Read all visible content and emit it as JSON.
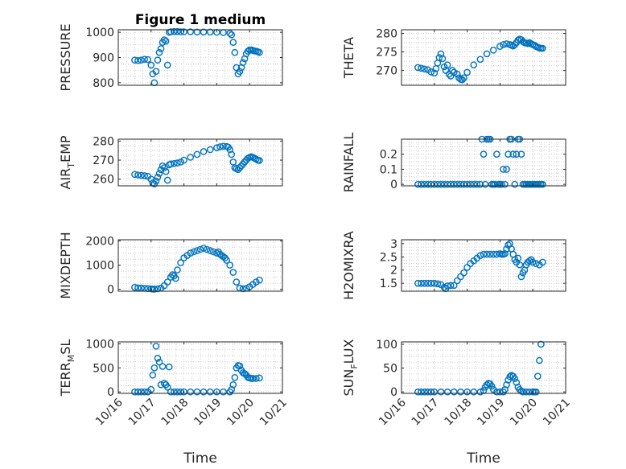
{
  "chart_data": {
    "type": "scatter",
    "title": "Figure 1 medium",
    "xlabel": "Time",
    "marker_color": "#0072BD",
    "x_tick_labels": [
      "10/16",
      "10/17",
      "10/18",
      "10/19",
      "10/20",
      "10/21"
    ],
    "x_tick_values": [
      16,
      17,
      18,
      19,
      20,
      21
    ],
    "xlim": [
      16,
      21
    ],
    "panels": [
      {
        "id": "pressure",
        "ylabel": "PRESSURE",
        "ylim": [
          790,
          1010
        ],
        "yticks": [
          800,
          900,
          1000
        ],
        "ytick_labels": [
          "800",
          "900",
          "1000"
        ],
        "x": [
          16.5,
          16.6,
          16.7,
          16.8,
          16.9,
          17.0,
          17.05,
          17.1,
          17.15,
          17.2,
          17.25,
          17.3,
          17.35,
          17.4,
          17.45,
          17.5,
          17.55,
          17.6,
          17.7,
          17.8,
          17.9,
          18.0,
          18.2,
          18.4,
          18.6,
          18.8,
          19.0,
          19.2,
          19.4,
          19.45,
          19.5,
          19.55,
          19.6,
          19.65,
          19.7,
          19.75,
          19.8,
          19.85,
          19.9,
          19.95,
          20.0,
          20.05,
          20.1,
          20.15,
          20.2,
          20.25,
          20.3
        ],
        "y": [
          890,
          888,
          890,
          893,
          892,
          870,
          835,
          800,
          845,
          890,
          920,
          935,
          960,
          970,
          965,
          870,
          1000,
          1002,
          1003,
          1003,
          1002,
          1002,
          1002,
          1001,
          1001,
          1001,
          1000,
          999,
          996,
          990,
          960,
          920,
          860,
          835,
          845,
          860,
          880,
          895,
          915,
          925,
          930,
          930,
          928,
          926,
          925,
          923,
          920
        ]
      },
      {
        "id": "theta",
        "ylabel": "THETA",
        "ylim": [
          266,
          281
        ],
        "yticks": [
          270,
          275,
          280
        ],
        "ytick_labels": [
          "270",
          "275",
          "280"
        ],
        "x": [
          16.5,
          16.6,
          16.7,
          16.8,
          16.9,
          17.0,
          17.05,
          17.1,
          17.15,
          17.2,
          17.25,
          17.3,
          17.35,
          17.4,
          17.45,
          17.5,
          17.55,
          17.6,
          17.7,
          17.75,
          17.8,
          17.85,
          17.9,
          18.0,
          18.2,
          18.4,
          18.6,
          18.8,
          19.0,
          19.1,
          19.2,
          19.3,
          19.35,
          19.4,
          19.45,
          19.5,
          19.55,
          19.6,
          19.65,
          19.7,
          19.75,
          19.8,
          19.85,
          19.9,
          19.95,
          20.0,
          20.05,
          20.1,
          20.15,
          20.2,
          20.25,
          20.3
        ],
        "y": [
          270.8,
          270.6,
          270.4,
          270.2,
          269.6,
          269.3,
          270.5,
          272,
          273.5,
          274.5,
          273.2,
          271,
          270,
          271.5,
          269,
          268.5,
          270,
          269.5,
          269,
          268,
          267.6,
          267.5,
          268,
          269.5,
          271.5,
          273,
          274.5,
          275.5,
          276.5,
          277,
          277.2,
          277,
          276.8,
          276.6,
          277,
          277.5,
          278.2,
          278.5,
          278.3,
          277.8,
          277.5,
          277.4,
          277.3,
          277.5,
          277.2,
          277,
          276.8,
          276.5,
          276.3,
          276.1,
          276,
          276
        ]
      },
      {
        "id": "air_temp",
        "ylabel": "AIR_TEMP",
        "ylabel_main": "AIR",
        "ylabel_sub": "T",
        "ylabel_rest": "EMP",
        "ylim": [
          256.5,
          281
        ],
        "yticks": [
          260,
          270,
          280
        ],
        "ytick_labels": [
          "260",
          "270",
          "280"
        ],
        "x": [
          16.5,
          16.6,
          16.7,
          16.8,
          16.9,
          17.0,
          17.05,
          17.1,
          17.15,
          17.2,
          17.25,
          17.3,
          17.35,
          17.4,
          17.45,
          17.5,
          17.55,
          17.6,
          17.7,
          17.8,
          17.9,
          18.0,
          18.2,
          18.4,
          18.6,
          18.8,
          19.0,
          19.1,
          19.2,
          19.3,
          19.35,
          19.4,
          19.45,
          19.5,
          19.55,
          19.6,
          19.65,
          19.7,
          19.75,
          19.8,
          19.85,
          19.9,
          19.95,
          20.0,
          20.05,
          20.1,
          20.15,
          20.2,
          20.25,
          20.3
        ],
        "y": [
          262.5,
          262.2,
          262,
          261.8,
          261.5,
          260,
          258,
          257.5,
          259,
          261,
          263,
          265,
          267,
          266,
          264,
          259.5,
          267.5,
          268,
          268.2,
          268.5,
          269,
          270,
          271.5,
          273,
          274.5,
          275.5,
          276.5,
          277,
          277.3,
          277.2,
          276.8,
          275.5,
          273,
          269,
          266,
          265.5,
          265,
          266,
          267,
          268,
          269,
          270,
          271,
          271.5,
          271.8,
          271.5,
          271,
          270.5,
          270,
          269.8
        ]
      },
      {
        "id": "rainfall",
        "ylabel": "RAINFALL",
        "ylim": [
          -0.01,
          0.3
        ],
        "yticks": [
          0,
          0.1,
          0.2
        ],
        "ytick_labels": [
          "0",
          "0.1",
          "0.2"
        ],
        "x": [
          16.5,
          16.6,
          16.7,
          16.8,
          16.9,
          17.0,
          17.1,
          17.2,
          17.3,
          17.4,
          17.5,
          17.6,
          17.7,
          17.8,
          17.9,
          18.0,
          18.1,
          18.2,
          18.3,
          18.4,
          18.45,
          18.5,
          18.55,
          18.6,
          18.65,
          18.7,
          18.75,
          18.8,
          18.85,
          18.9,
          18.95,
          19.0,
          19.05,
          19.1,
          19.15,
          19.2,
          19.25,
          19.3,
          19.35,
          19.4,
          19.45,
          19.5,
          19.55,
          19.6,
          19.65,
          19.7,
          19.75,
          19.8,
          19.85,
          19.9,
          19.95,
          20.0,
          20.05,
          20.1,
          20.15,
          20.2,
          20.25,
          20.3
        ],
        "y": [
          0,
          0,
          0,
          0,
          0,
          0,
          0,
          0,
          0,
          0,
          0,
          0,
          0,
          0,
          0,
          0,
          0,
          0,
          0,
          0,
          0.3,
          0.2,
          0,
          0.3,
          0.3,
          0.3,
          0,
          0,
          0,
          0.2,
          0,
          0,
          0,
          0.1,
          0,
          0.1,
          0.2,
          0.3,
          0.3,
          0.2,
          0,
          0.2,
          0.3,
          0.3,
          0.2,
          0,
          0,
          0,
          0,
          0,
          0,
          0,
          0,
          0,
          0,
          0,
          0,
          0
        ]
      },
      {
        "id": "mixdepth",
        "ylabel": "MIXDEPTH",
        "ylim": [
          -80,
          2050
        ],
        "yticks": [
          0,
          1000,
          2000
        ],
        "ytick_labels": [
          "0",
          "1000",
          "2000"
        ],
        "x": [
          16.5,
          16.6,
          16.7,
          16.8,
          16.9,
          17.0,
          17.05,
          17.1,
          17.2,
          17.3,
          17.4,
          17.5,
          17.6,
          17.65,
          17.7,
          17.75,
          17.8,
          17.9,
          18.0,
          18.1,
          18.2,
          18.3,
          18.4,
          18.5,
          18.6,
          18.7,
          18.8,
          18.9,
          19.0,
          19.05,
          19.1,
          19.15,
          19.2,
          19.25,
          19.3,
          19.4,
          19.5,
          19.6,
          19.7,
          19.8,
          19.9,
          20.0,
          20.1,
          20.2,
          20.3
        ],
        "y": [
          80,
          60,
          50,
          40,
          30,
          20,
          10,
          5,
          20,
          50,
          150,
          300,
          500,
          600,
          550,
          450,
          800,
          1100,
          1300,
          1400,
          1500,
          1550,
          1600,
          1650,
          1700,
          1650,
          1600,
          1550,
          1500,
          1550,
          1450,
          1400,
          1350,
          1300,
          1200,
          1000,
          700,
          300,
          50,
          20,
          40,
          100,
          200,
          300,
          380
        ]
      },
      {
        "id": "h2omixra",
        "ylabel": "H2OMIXRA",
        "ylim": [
          1.2,
          3.15
        ],
        "yticks": [
          1.5,
          2,
          2.5,
          3
        ],
        "ytick_labels": [
          "1.5",
          "2",
          "2.5",
          "3"
        ],
        "x": [
          16.5,
          16.6,
          16.7,
          16.8,
          16.9,
          17.0,
          17.1,
          17.2,
          17.3,
          17.35,
          17.4,
          17.5,
          17.6,
          17.7,
          17.8,
          17.9,
          18.0,
          18.1,
          18.2,
          18.3,
          18.4,
          18.5,
          18.6,
          18.7,
          18.8,
          18.9,
          19.0,
          19.05,
          19.1,
          19.15,
          19.2,
          19.25,
          19.3,
          19.35,
          19.4,
          19.45,
          19.5,
          19.55,
          19.6,
          19.65,
          19.7,
          19.75,
          19.8,
          19.85,
          19.9,
          19.95,
          20.0,
          20.1,
          20.2,
          20.3
        ],
        "y": [
          1.5,
          1.5,
          1.5,
          1.5,
          1.5,
          1.5,
          1.48,
          1.45,
          1.35,
          1.3,
          1.4,
          1.42,
          1.42,
          1.6,
          1.75,
          1.9,
          2.1,
          2.25,
          2.35,
          2.45,
          2.55,
          2.6,
          2.6,
          2.6,
          2.6,
          2.6,
          2.62,
          2.6,
          2.6,
          2.62,
          2.8,
          2.95,
          3.0,
          2.8,
          2.6,
          2.4,
          2.3,
          2.45,
          2.2,
          1.75,
          1.9,
          2.0,
          2.2,
          2.3,
          2.35,
          2.4,
          2.3,
          2.25,
          2.2,
          2.3
        ]
      },
      {
        "id": "terr_msl",
        "ylabel": "TERR_MSL",
        "ylabel_main": "TERR",
        "ylabel_sub": "M",
        "ylabel_rest": "SL",
        "ylim": [
          -30,
          1040
        ],
        "yticks": [
          0,
          500,
          1000
        ],
        "ytick_labels": [
          "0",
          "500",
          "1000"
        ],
        "x": [
          16.5,
          16.6,
          16.7,
          16.8,
          16.9,
          17.0,
          17.05,
          17.1,
          17.15,
          17.2,
          17.25,
          17.3,
          17.35,
          17.4,
          17.45,
          17.5,
          17.55,
          17.6,
          17.7,
          17.8,
          17.9,
          18.0,
          18.2,
          18.4,
          18.6,
          18.8,
          19.0,
          19.2,
          19.4,
          19.45,
          19.5,
          19.55,
          19.6,
          19.65,
          19.7,
          19.75,
          19.8,
          19.85,
          19.9,
          19.95,
          20.0,
          20.05,
          20.1,
          20.2,
          20.3
        ],
        "y": [
          0,
          0,
          0,
          0,
          0,
          50,
          350,
          500,
          950,
          700,
          620,
          150,
          530,
          180,
          150,
          100,
          520,
          0,
          0,
          0,
          0,
          0,
          0,
          0,
          0,
          0,
          0,
          0,
          0,
          50,
          150,
          300,
          500,
          550,
          540,
          450,
          400,
          380,
          350,
          300,
          290,
          280,
          280,
          280,
          290
        ]
      },
      {
        "id": "sun_flux",
        "ylabel": "SUN_FLUX",
        "ylabel_main": "SUN",
        "ylabel_sub": "F",
        "ylabel_rest": "LUX",
        "ylim": [
          -3,
          105
        ],
        "yticks": [
          0,
          50,
          100
        ],
        "ytick_labels": [
          "0",
          "50",
          "100"
        ],
        "x": [
          16.5,
          16.6,
          16.7,
          16.8,
          16.9,
          17.0,
          17.2,
          17.4,
          17.6,
          17.8,
          18.0,
          18.2,
          18.4,
          18.5,
          18.55,
          18.6,
          18.65,
          18.7,
          18.75,
          18.8,
          18.9,
          19.0,
          19.1,
          19.15,
          19.2,
          19.25,
          19.3,
          19.35,
          19.4,
          19.45,
          19.5,
          19.55,
          19.6,
          19.65,
          19.7,
          19.8,
          19.9,
          20.0,
          20.05,
          20.1,
          20.15,
          20.2,
          20.25
        ],
        "y": [
          0,
          0,
          0,
          0,
          0,
          0,
          0,
          0,
          0,
          0,
          0,
          0,
          0,
          3,
          10,
          15,
          18,
          17,
          12,
          5,
          0,
          0,
          0,
          5,
          15,
          25,
          32,
          35,
          33,
          28,
          20,
          10,
          5,
          2,
          0,
          0,
          0,
          0,
          0,
          0,
          33,
          66,
          100
        ]
      }
    ]
  }
}
